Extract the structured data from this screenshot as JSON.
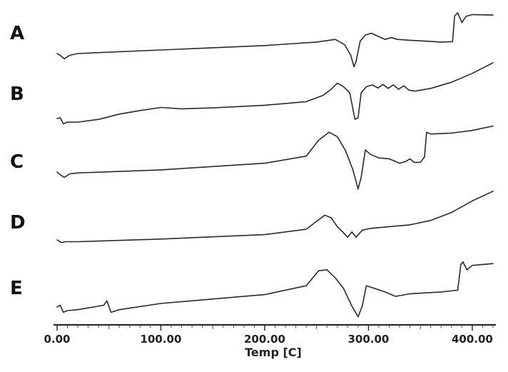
{
  "chart_data": {
    "type": "line",
    "xlabel": "Temp [C]",
    "xlim": [
      0,
      420
    ],
    "x_ticks": [
      "0.00",
      "100.00",
      "200.00",
      "300.00",
      "400.00"
    ],
    "grid": false,
    "series": [
      {
        "name": "A",
        "points": [
          [
            0,
            0.0
          ],
          [
            3,
            -0.04
          ],
          [
            7,
            -0.12
          ],
          [
            12,
            -0.04
          ],
          [
            20,
            0.0
          ],
          [
            100,
            0.08
          ],
          [
            200,
            0.18
          ],
          [
            250,
            0.26
          ],
          [
            268,
            0.32
          ],
          [
            277,
            0.2
          ],
          [
            283,
            -0.04
          ],
          [
            286,
            -0.3
          ],
          [
            288,
            -0.18
          ],
          [
            292,
            0.28
          ],
          [
            297,
            0.42
          ],
          [
            303,
            0.46
          ],
          [
            310,
            0.38
          ],
          [
            316,
            0.32
          ],
          [
            322,
            0.36
          ],
          [
            328,
            0.32
          ],
          [
            340,
            0.3
          ],
          [
            355,
            0.28
          ],
          [
            370,
            0.26
          ],
          [
            381,
            0.27
          ],
          [
            383,
            0.85
          ],
          [
            386,
            0.92
          ],
          [
            390,
            0.7
          ],
          [
            394,
            0.84
          ],
          [
            400,
            0.88
          ],
          [
            420,
            0.87
          ]
        ]
      },
      {
        "name": "B",
        "points": [
          [
            0,
            0.0
          ],
          [
            3,
            0.02
          ],
          [
            6,
            -0.12
          ],
          [
            10,
            -0.08
          ],
          [
            20,
            -0.08
          ],
          [
            40,
            -0.02
          ],
          [
            60,
            0.1
          ],
          [
            80,
            0.18
          ],
          [
            100,
            0.25
          ],
          [
            120,
            0.22
          ],
          [
            150,
            0.24
          ],
          [
            200,
            0.3
          ],
          [
            240,
            0.38
          ],
          [
            256,
            0.52
          ],
          [
            264,
            0.66
          ],
          [
            270,
            0.8
          ],
          [
            276,
            0.72
          ],
          [
            282,
            0.58
          ],
          [
            287,
            -0.02
          ],
          [
            290,
            0.02
          ],
          [
            293,
            0.58
          ],
          [
            298,
            0.72
          ],
          [
            304,
            0.76
          ],
          [
            309,
            0.69
          ],
          [
            314,
            0.77
          ],
          [
            319,
            0.68
          ],
          [
            324,
            0.76
          ],
          [
            329,
            0.66
          ],
          [
            334,
            0.74
          ],
          [
            339,
            0.64
          ],
          [
            345,
            0.62
          ],
          [
            360,
            0.68
          ],
          [
            380,
            0.82
          ],
          [
            400,
            1.02
          ],
          [
            420,
            1.26
          ]
        ]
      },
      {
        "name": "C",
        "points": [
          [
            0,
            0.0
          ],
          [
            3,
            -0.06
          ],
          [
            7,
            -0.12
          ],
          [
            12,
            -0.04
          ],
          [
            20,
            -0.02
          ],
          [
            100,
            0.05
          ],
          [
            200,
            0.2
          ],
          [
            240,
            0.36
          ],
          [
            252,
            0.72
          ],
          [
            262,
            0.9
          ],
          [
            270,
            0.8
          ],
          [
            278,
            0.48
          ],
          [
            285,
            0.05
          ],
          [
            290,
            -0.38
          ],
          [
            293,
            -0.12
          ],
          [
            297,
            0.5
          ],
          [
            302,
            0.4
          ],
          [
            310,
            0.32
          ],
          [
            320,
            0.3
          ],
          [
            330,
            0.2
          ],
          [
            336,
            0.24
          ],
          [
            340,
            0.3
          ],
          [
            344,
            0.22
          ],
          [
            350,
            0.22
          ],
          [
            354,
            0.34
          ],
          [
            356,
            0.9
          ],
          [
            360,
            0.86
          ],
          [
            380,
            0.88
          ],
          [
            400,
            0.94
          ],
          [
            420,
            1.04
          ]
        ]
      },
      {
        "name": "D",
        "points": [
          [
            0,
            0.0
          ],
          [
            4,
            -0.06
          ],
          [
            8,
            -0.04
          ],
          [
            20,
            -0.04
          ],
          [
            100,
            0.02
          ],
          [
            200,
            0.12
          ],
          [
            240,
            0.24
          ],
          [
            250,
            0.42
          ],
          [
            258,
            0.56
          ],
          [
            264,
            0.5
          ],
          [
            270,
            0.3
          ],
          [
            276,
            0.16
          ],
          [
            280,
            0.06
          ],
          [
            284,
            0.18
          ],
          [
            288,
            0.06
          ],
          [
            294,
            0.22
          ],
          [
            302,
            0.26
          ],
          [
            320,
            0.3
          ],
          [
            340,
            0.34
          ],
          [
            360,
            0.44
          ],
          [
            380,
            0.62
          ],
          [
            400,
            0.88
          ],
          [
            420,
            1.1
          ]
        ]
      },
      {
        "name": "E",
        "points": [
          [
            0,
            0.0
          ],
          [
            3,
            0.04
          ],
          [
            6,
            -0.12
          ],
          [
            10,
            -0.08
          ],
          [
            20,
            -0.06
          ],
          [
            45,
            0.04
          ],
          [
            48,
            0.14
          ],
          [
            52,
            -0.12
          ],
          [
            60,
            -0.06
          ],
          [
            100,
            0.08
          ],
          [
            200,
            0.28
          ],
          [
            240,
            0.48
          ],
          [
            252,
            0.82
          ],
          [
            260,
            0.84
          ],
          [
            268,
            0.66
          ],
          [
            276,
            0.42
          ],
          [
            284,
            0.02
          ],
          [
            290,
            -0.22
          ],
          [
            294,
            0.02
          ],
          [
            298,
            0.48
          ],
          [
            306,
            0.42
          ],
          [
            316,
            0.34
          ],
          [
            326,
            0.24
          ],
          [
            340,
            0.3
          ],
          [
            370,
            0.34
          ],
          [
            386,
            0.38
          ],
          [
            389,
            0.96
          ],
          [
            391,
            1.02
          ],
          [
            395,
            0.84
          ],
          [
            400,
            0.94
          ],
          [
            420,
            0.98
          ]
        ]
      }
    ]
  }
}
